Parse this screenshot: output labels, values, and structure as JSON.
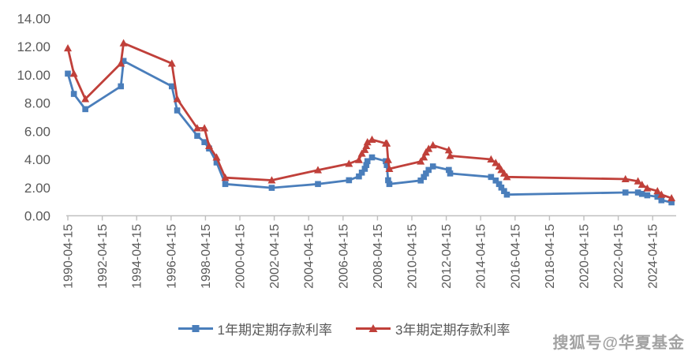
{
  "watermark": {
    "text": "搜狐号@华夏基金"
  },
  "chart_data": {
    "type": "line",
    "title": "",
    "xlabel": "",
    "ylabel": "",
    "ylim": [
      0,
      14
    ],
    "grid": false,
    "legend_position": "bottom",
    "y_ticks": [
      "0.00",
      "2.00",
      "4.00",
      "6.00",
      "8.00",
      "10.00",
      "12.00",
      "14.00"
    ],
    "x_tick_labels": [
      "1990-04-15",
      "1992-04-15",
      "1994-04-15",
      "1996-04-15",
      "1998-04-15",
      "2000-04-15",
      "2002-04-15",
      "2004-04-15",
      "2006-04-15",
      "2008-04-15",
      "2010-04-15",
      "2012-04-15",
      "2014-04-15",
      "2016-04-15",
      "2018-04-15",
      "2020-04-15",
      "2022-04-15",
      "2024-04-15"
    ],
    "x": [
      "1990-04-15",
      "1990-08-21",
      "1991-04-21",
      "1993-05-15",
      "1993-07-11",
      "1996-05-01",
      "1996-08-23",
      "1997-10-23",
      "1998-03-25",
      "1998-07-01",
      "1998-12-07",
      "1999-06-10",
      "2002-02-21",
      "2004-10-29",
      "2006-08-19",
      "2007-03-18",
      "2007-05-19",
      "2007-07-21",
      "2007-08-22",
      "2007-09-15",
      "2007-12-21",
      "2008-10-09",
      "2008-10-30",
      "2008-11-27",
      "2008-12-23",
      "2010-10-20",
      "2010-12-26",
      "2011-02-09",
      "2011-04-06",
      "2011-07-07",
      "2012-06-08",
      "2012-07-06",
      "2014-11-22",
      "2015-03-01",
      "2015-05-11",
      "2015-06-28",
      "2015-08-26",
      "2015-10-24",
      "2022-09-15",
      "2023-06-08",
      "2023-09-01",
      "2023-12-22",
      "2024-07-25",
      "2024-10-18",
      "2025-05-20"
    ],
    "series": [
      {
        "name": "1年期定期存款利率",
        "marker": "square",
        "color": "#4A7EBB",
        "values": [
          10.08,
          8.64,
          7.56,
          9.18,
          10.98,
          9.18,
          7.47,
          5.67,
          5.22,
          4.77,
          3.78,
          2.25,
          1.98,
          2.25,
          2.52,
          2.79,
          3.06,
          3.33,
          3.6,
          3.87,
          4.14,
          3.87,
          3.6,
          2.52,
          2.25,
          2.5,
          2.75,
          3.0,
          3.25,
          3.5,
          3.25,
          3.0,
          2.75,
          2.5,
          2.25,
          2.0,
          1.75,
          1.5,
          1.65,
          1.65,
          1.55,
          1.45,
          1.35,
          1.1,
          0.95
        ]
      },
      {
        "name": "3年期定期存款利率",
        "marker": "triangle",
        "color": "#C0403A",
        "values": [
          11.88,
          10.08,
          8.28,
          10.8,
          12.24,
          10.8,
          8.28,
          6.21,
          6.21,
          4.95,
          4.14,
          2.7,
          2.52,
          3.24,
          3.69,
          3.96,
          4.41,
          4.68,
          4.95,
          5.22,
          5.4,
          5.13,
          5.13,
          3.96,
          3.33,
          3.85,
          4.15,
          4.5,
          4.75,
          5.0,
          4.65,
          4.25,
          4.0,
          3.75,
          3.5,
          3.25,
          3.0,
          2.75,
          2.6,
          2.45,
          2.2,
          1.95,
          1.75,
          1.5,
          1.25
        ]
      }
    ],
    "colors": {
      "axis": "#BFBFBF",
      "tick_label": "#595959",
      "legend_text": "#595959",
      "watermark": "#9B9B9B"
    }
  }
}
